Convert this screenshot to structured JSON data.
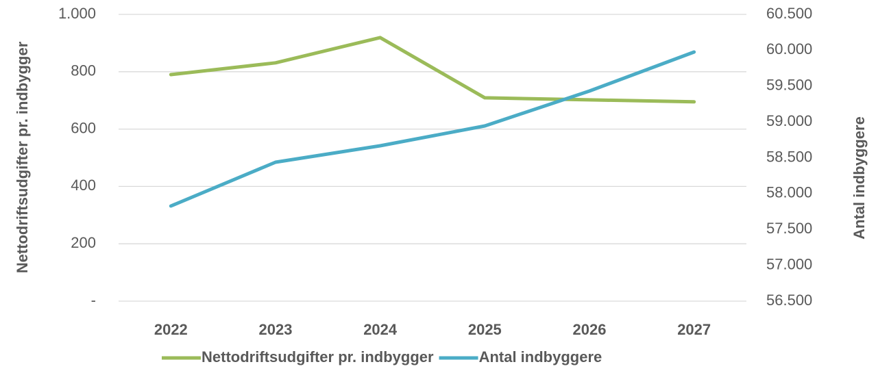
{
  "chart_data": {
    "type": "line",
    "categories": [
      "2022",
      "2023",
      "2024",
      "2025",
      "2026",
      "2027"
    ],
    "series": [
      {
        "name": "Nettodriftsudgifter pr. indbygger",
        "color": "#9bbb59",
        "values": [
          790,
          831,
          919,
          709,
          702,
          695
        ]
      },
      {
        "name": "Antal indbyggere",
        "color": "#4bacc6",
        "axis": "y2",
        "values": [
          57827,
          58438,
          58667,
          58944,
          59431,
          59975
        ]
      }
    ],
    "ylabel": "Nettodriftsudgifter pr. indbygger",
    "y2label": "Antal indbyggere",
    "ylim": [
      0,
      1000
    ],
    "yticks": [
      {
        "value": 0,
        "label": "-"
      },
      200,
      400,
      600,
      800,
      {
        "value": 1000,
        "label": "1.000"
      }
    ],
    "y2lim": [
      56500,
      60500
    ],
    "y2ticks": [
      {
        "value": 56500,
        "label": "56.500"
      },
      {
        "value": 57000,
        "label": "57.000"
      },
      {
        "value": 57500,
        "label": "57.500"
      },
      {
        "value": 58000,
        "label": "58.000"
      },
      {
        "value": 58500,
        "label": "58.500"
      },
      {
        "value": 59000,
        "label": "59.000"
      },
      {
        "value": 59500,
        "label": "59.500"
      },
      {
        "value": 60000,
        "label": "60.000"
      },
      {
        "value": 60500,
        "label": "60.500"
      }
    ],
    "grid": true,
    "legend": "bottom"
  }
}
